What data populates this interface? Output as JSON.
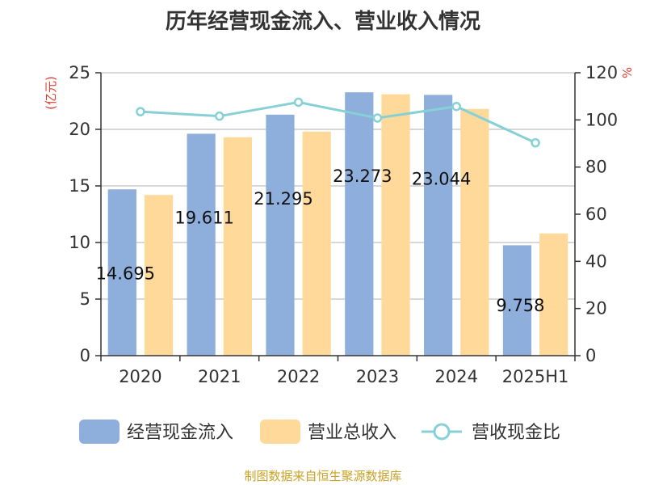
{
  "title": "历年经营现金流入、营业收入情况",
  "source": "制图数据来自恒生聚源数据库",
  "colors": {
    "cash_inflow": "#8eaedb",
    "revenue": "#ffd99a",
    "ratio": "#86d0d6",
    "grid": "#cccccc",
    "axis": "#333333",
    "unit": "#e03c2d"
  },
  "chart_data": {
    "type": "bar",
    "categories": [
      "2020",
      "2021",
      "2022",
      "2023",
      "2024",
      "2025H1"
    ],
    "left_axis": {
      "unit_label": "(亿元)",
      "ylim": [
        0,
        25
      ],
      "ticks": [
        "0",
        "5",
        "10",
        "15",
        "20",
        "25"
      ]
    },
    "right_axis": {
      "unit_label": "%",
      "ylim": [
        0,
        120
      ],
      "ticks": [
        "0",
        "20",
        "40",
        "60",
        "80",
        "100",
        "120"
      ]
    },
    "series": [
      {
        "name": "经营现金流入",
        "type": "bar",
        "axis": "left",
        "values": [
          14.695,
          19.611,
          21.295,
          23.273,
          23.044,
          9.758
        ],
        "data_labels": [
          "14.695",
          "19.611",
          "21.295",
          "23.273",
          "23.044",
          "9.758"
        ]
      },
      {
        "name": "营业总收入",
        "type": "bar",
        "axis": "left",
        "values": [
          14.2,
          19.3,
          19.8,
          23.1,
          21.8,
          10.8
        ]
      },
      {
        "name": "营收现金比",
        "type": "line",
        "axis": "right",
        "values": [
          103.5,
          101.6,
          107.5,
          100.8,
          105.7,
          90.3
        ]
      }
    ],
    "grid": true,
    "legend_position": "bottom"
  }
}
